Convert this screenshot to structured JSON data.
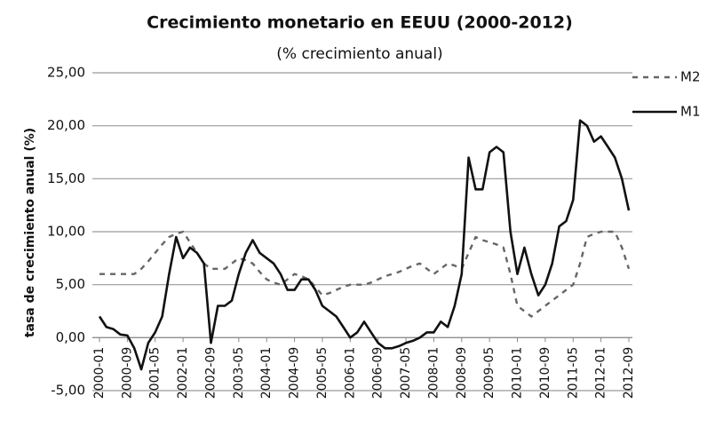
{
  "chart_data": {
    "type": "line",
    "title": "Crecimiento monetario en EEUU (2000-2012)",
    "subtitle": "(% crecimiento anual)",
    "y_label": "tasa de crecimiento anual (%)",
    "categories": [
      "2000-01",
      null,
      null,
      null,
      "2000-09",
      null,
      null,
      null,
      "2001-05",
      null,
      null,
      null,
      "2002-01",
      null,
      null,
      null,
      "2002-09",
      null,
      null,
      null,
      "2003-05",
      null,
      null,
      null,
      "2004-01",
      null,
      null,
      null,
      "2004-09",
      null,
      null,
      null,
      "2005-05",
      null,
      null,
      null,
      "2006-01",
      null,
      null,
      null,
      "2006-09",
      null,
      null,
      null,
      "2007-05",
      null,
      null,
      null,
      "2008-01",
      null,
      null,
      null,
      "2008-09",
      null,
      null,
      null,
      "2009-05",
      null,
      null,
      null,
      "2010-01",
      null,
      null,
      null,
      "2010-09",
      null,
      null,
      null,
      "2011-05",
      null,
      null,
      null,
      "2012-01",
      null,
      null,
      null,
      "2012-09"
    ],
    "series": [
      {
        "name": "M2",
        "color": "#666666",
        "style": "dashed",
        "values": [
          6.0,
          6.0,
          6.0,
          6.0,
          6.0,
          6.0,
          6.5,
          7.2,
          8.0,
          8.8,
          9.5,
          9.8,
          10.0,
          9.0,
          8.0,
          7.0,
          6.5,
          6.5,
          6.5,
          7.0,
          7.5,
          7.3,
          7.0,
          6.2,
          5.5,
          5.2,
          5.0,
          5.5,
          6.0,
          5.8,
          5.5,
          4.8,
          4.0,
          4.2,
          4.5,
          4.8,
          5.0,
          5.0,
          5.0,
          5.2,
          5.5,
          5.8,
          6.0,
          6.2,
          6.5,
          6.8,
          7.0,
          6.5,
          6.0,
          6.5,
          7.0,
          6.8,
          6.5,
          8.0,
          9.5,
          9.2,
          9.0,
          8.8,
          8.5,
          6.0,
          3.0,
          2.5,
          2.0,
          2.5,
          3.0,
          3.5,
          4.0,
          4.5,
          5.0,
          7.0,
          9.5,
          9.8,
          10.0,
          10.0,
          10.0,
          8.5,
          6.5
        ]
      },
      {
        "name": "M1",
        "color": "#111111",
        "style": "solid",
        "values": [
          2.0,
          1.0,
          0.8,
          0.3,
          0.2,
          -1.0,
          -3.0,
          -0.5,
          0.5,
          2.0,
          6.0,
          9.5,
          7.5,
          8.5,
          8.0,
          7.0,
          -0.5,
          3.0,
          3.0,
          3.5,
          6.0,
          8.0,
          9.2,
          8.0,
          7.5,
          7.0,
          6.0,
          4.5,
          4.5,
          5.5,
          5.5,
          4.5,
          3.0,
          2.5,
          2.0,
          1.0,
          0.0,
          0.5,
          1.5,
          0.5,
          -0.5,
          -1.0,
          -1.0,
          -0.8,
          -0.5,
          -0.3,
          0.0,
          0.5,
          0.5,
          1.5,
          1.0,
          3.0,
          6.0,
          17.0,
          14.0,
          14.0,
          17.5,
          18.0,
          17.5,
          10.0,
          6.0,
          8.5,
          6.0,
          4.0,
          5.0,
          7.0,
          10.5,
          11.0,
          13.0,
          20.5,
          20.0,
          18.5,
          19.0,
          18.0,
          17.0,
          15.0,
          12.0
        ]
      }
    ],
    "ylim": [
      -5,
      25
    ],
    "yticks": [
      {
        "value": -5,
        "label": "-5,00"
      },
      {
        "value": 0,
        "label": "0,00"
      },
      {
        "value": 5,
        "label": "5,00"
      },
      {
        "value": 10,
        "label": "10,00"
      },
      {
        "value": 15,
        "label": "15,00"
      },
      {
        "value": 20,
        "label": "20,00"
      },
      {
        "value": 25,
        "label": "25,00"
      }
    ],
    "grid": true,
    "legend": "right"
  }
}
